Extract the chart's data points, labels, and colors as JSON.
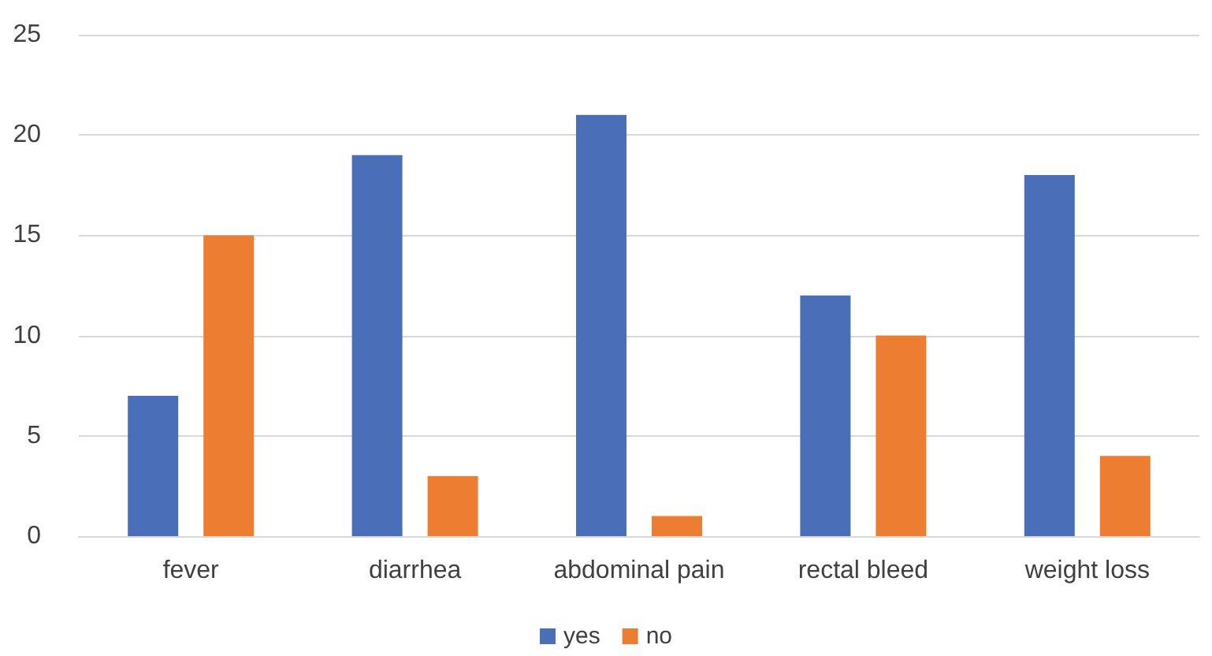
{
  "chart_data": {
    "type": "bar",
    "categories": [
      "fever",
      "diarrhea",
      "abdominal pain",
      "rectal bleed",
      "weight loss"
    ],
    "series": [
      {
        "name": "yes",
        "color": "#4a6eb8",
        "values": [
          7,
          19,
          21,
          12,
          18
        ]
      },
      {
        "name": "no",
        "color": "#ed7d31",
        "values": [
          15,
          3,
          1,
          10,
          4
        ]
      }
    ],
    "ylim": [
      0,
      25
    ],
    "yticks": [
      0,
      5,
      10,
      15,
      20,
      25
    ],
    "grid": "y",
    "legend": "bottom"
  }
}
